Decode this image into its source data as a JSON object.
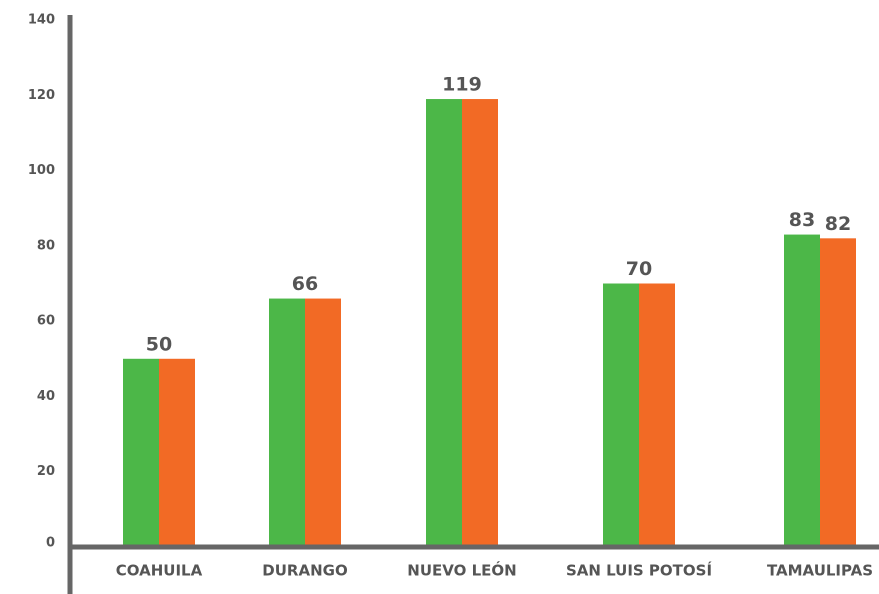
{
  "chart_data": {
    "type": "bar",
    "categories": [
      "COAHUILA",
      "DURANGO",
      "NUEVO LEÓN",
      "SAN LUIS POTOSÍ",
      "TAMAULIPAS"
    ],
    "series": [
      {
        "color": "#4cb748",
        "values": [
          50,
          66,
          119,
          70,
          83
        ]
      },
      {
        "color": "#f26a25",
        "values": [
          50,
          66,
          119,
          70,
          82
        ]
      }
    ],
    "ylim": [
      0,
      140
    ],
    "yticks": [
      0,
      20,
      40,
      60,
      80,
      100,
      120,
      140
    ],
    "grid": false
  }
}
